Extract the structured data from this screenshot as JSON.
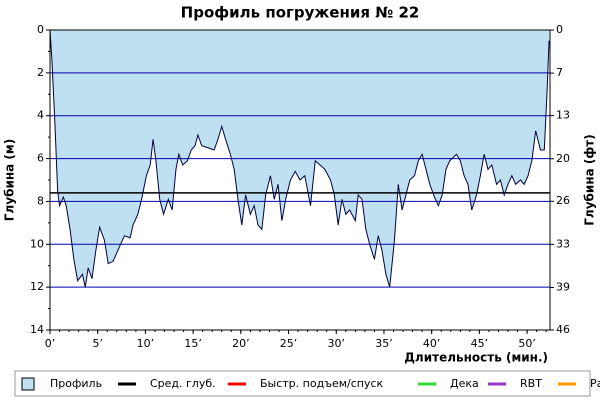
{
  "chart_data": {
    "type": "area",
    "title": "Профиль погружения № 22",
    "y_label": "Глубина (м)",
    "y2_label": "Глубина (фт)",
    "x_label": "Длительность (мин.)",
    "y_inverted": true,
    "grid": true,
    "legend": "bottom",
    "xlim": [
      0,
      52.4
    ],
    "xticks": [
      {
        "value": 0,
        "label": "0’"
      },
      {
        "value": 5,
        "label": "5’"
      },
      {
        "value": 10,
        "label": "10’"
      },
      {
        "value": 15,
        "label": "15’"
      },
      {
        "value": 20,
        "label": "20’"
      },
      {
        "value": 25,
        "label": "25’"
      },
      {
        "value": 30,
        "label": "30’"
      },
      {
        "value": 35,
        "label": "35’"
      },
      {
        "value": 40,
        "label": "40’"
      },
      {
        "value": 45,
        "label": "45’"
      },
      {
        "value": 50,
        "label": "50’"
      }
    ],
    "ylim": [
      0,
      14
    ],
    "yticks": [
      0,
      2,
      4,
      6,
      8,
      10,
      12,
      14
    ],
    "y2lim": [
      0,
      45.9
    ],
    "y2ticks": [
      {
        "value": 0,
        "label": "0"
      },
      {
        "value": 6.6,
        "label": "7"
      },
      {
        "value": 13.1,
        "label": "13"
      },
      {
        "value": 19.7,
        "label": "20"
      },
      {
        "value": 26.2,
        "label": "26"
      },
      {
        "value": 32.8,
        "label": "33"
      },
      {
        "value": 39.4,
        "label": "39"
      },
      {
        "value": 45.9,
        "label": "46"
      }
    ],
    "x": [
      0,
      0.2,
      0.5,
      0.8,
      1.0,
      1.4,
      1.7,
      2.1,
      2.5,
      2.9,
      3.4,
      3.7,
      4.0,
      4.4,
      4.8,
      5.2,
      5.7,
      6.1,
      6.6,
      7.1,
      7.8,
      8.4,
      8.7,
      9.2,
      9.6,
      10.1,
      10.5,
      10.8,
      11.1,
      11.5,
      11.9,
      12.4,
      12.8,
      13.2,
      13.5,
      13.9,
      14.4,
      14.8,
      15.2,
      15.5,
      15.9,
      16.6,
      17.2,
      17.6,
      18.0,
      18.4,
      18.9,
      19.3,
      19.7,
      20.1,
      20.5,
      21.0,
      21.4,
      21.8,
      22.2,
      22.6,
      23.1,
      23.5,
      23.9,
      24.3,
      24.7,
      25.2,
      25.7,
      26.2,
      26.7,
      27.3,
      27.8,
      28.3,
      28.8,
      29.4,
      29.8,
      30.2,
      30.6,
      31.0,
      31.4,
      32.0,
      32.3,
      32.7,
      33.1,
      33.5,
      34.0,
      34.4,
      34.8,
      35.2,
      35.6,
      36.1,
      36.5,
      36.9,
      37.3,
      37.7,
      38.2,
      38.6,
      39.0,
      39.4,
      39.8,
      40.3,
      40.7,
      41.1,
      41.5,
      41.9,
      42.6,
      43.0,
      43.4,
      43.8,
      44.2,
      44.7,
      45.1,
      45.5,
      45.9,
      46.3,
      46.8,
      47.2,
      47.6,
      48.0,
      48.4,
      48.8,
      49.3,
      49.7,
      50.1,
      50.5,
      50.9,
      51.4,
      51.8,
      52.1,
      52.3
    ],
    "series": [
      {
        "name": "Профиль",
        "color": "#bfe0f0",
        "line_color": "#000040",
        "values": [
          0,
          1.4,
          4.2,
          7.5,
          8.2,
          7.8,
          8.2,
          9.3,
          10.7,
          11.7,
          11.4,
          12.0,
          11.1,
          11.6,
          10.3,
          9.2,
          9.8,
          10.9,
          10.8,
          10.3,
          9.6,
          9.7,
          9.1,
          8.6,
          7.9,
          6.8,
          6.3,
          5.1,
          6.1,
          7.9,
          8.6,
          7.9,
          8.4,
          6.5,
          5.8,
          6.3,
          6.1,
          5.6,
          5.4,
          4.9,
          5.4,
          5.5,
          5.6,
          5.1,
          4.5,
          5.1,
          5.8,
          6.5,
          7.9,
          9.1,
          7.7,
          8.6,
          8.2,
          9.1,
          9.3,
          7.7,
          6.8,
          7.9,
          7.2,
          8.9,
          7.9,
          7.0,
          6.6,
          7.0,
          6.8,
          8.2,
          6.1,
          6.3,
          6.5,
          7.0,
          7.7,
          9.1,
          7.9,
          8.6,
          8.4,
          8.9,
          7.7,
          7.9,
          9.3,
          10.0,
          10.7,
          9.6,
          10.3,
          11.4,
          12.0,
          9.8,
          7.2,
          8.4,
          7.7,
          7.0,
          6.8,
          6.1,
          5.8,
          6.5,
          7.2,
          7.8,
          8.2,
          7.7,
          6.5,
          6.1,
          5.8,
          6.1,
          6.8,
          7.2,
          8.4,
          7.7,
          6.8,
          5.8,
          6.5,
          6.3,
          7.2,
          7.0,
          7.7,
          7.2,
          6.8,
          7.2,
          7.0,
          7.2,
          6.8,
          6.1,
          4.7,
          5.6,
          5.6,
          2.8,
          0.5
        ]
      }
    ],
    "mean_line": {
      "name": "Сред. глуб.",
      "color": "#000000",
      "value": 7.6
    },
    "legend_extra": [
      {
        "name": "Быстр. подъем/спуск",
        "color": "#ff0000"
      },
      {
        "name": "Дека",
        "color": "#33dd33"
      },
      {
        "name": "RBT",
        "color": "#9933cc"
      },
      {
        "name": "Раб.",
        "color": "#ff9900"
      }
    ]
  }
}
